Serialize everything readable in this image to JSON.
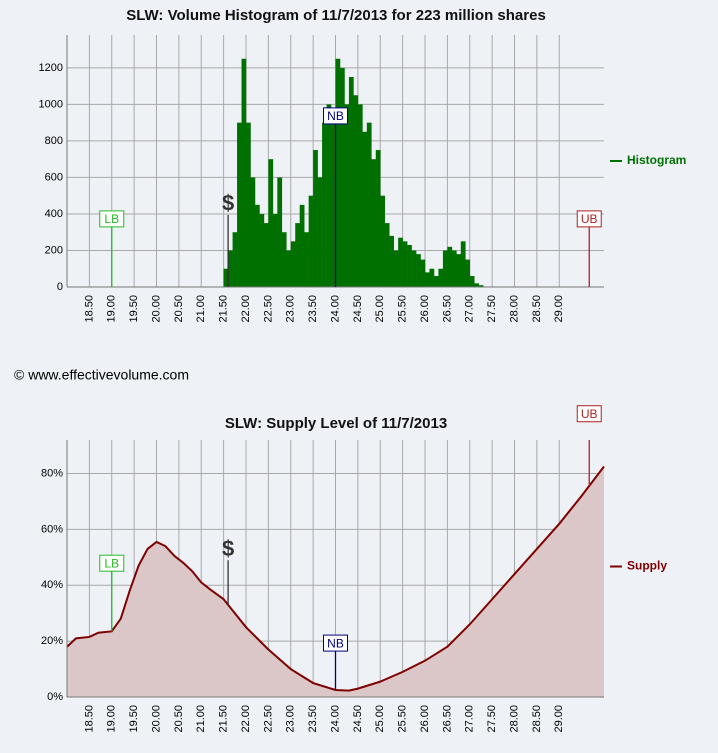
{
  "credit": "© www.effectivevolume.com",
  "chart_data": [
    {
      "type": "histogram",
      "title": "SLW: Volume Histogram of 11/7/2013 for 223 million shares",
      "xlim": [
        18.0,
        30.0
      ],
      "ylim": [
        0,
        1380
      ],
      "grid": true,
      "legend": "right",
      "xticks": [
        {
          "value": 18.5,
          "label": "18.50"
        },
        {
          "value": 19,
          "label": "19.00"
        },
        {
          "value": 19.5,
          "label": "19.50"
        },
        {
          "value": 20,
          "label": "20.00"
        },
        {
          "value": 20.5,
          "label": "20.50"
        },
        {
          "value": 21,
          "label": "21.00"
        },
        {
          "value": 21.5,
          "label": "21.50"
        },
        {
          "value": 22,
          "label": "22.00"
        },
        {
          "value": 22.5,
          "label": "22.50"
        },
        {
          "value": 23,
          "label": "23.00"
        },
        {
          "value": 23.5,
          "label": "23.50"
        },
        {
          "value": 24,
          "label": "24.00"
        },
        {
          "value": 24.5,
          "label": "24.50"
        },
        {
          "value": 25,
          "label": "25.00"
        },
        {
          "value": 25.5,
          "label": "25.50"
        },
        {
          "value": 26,
          "label": "26.00"
        },
        {
          "value": 26.5,
          "label": "26.50"
        },
        {
          "value": 27,
          "label": "27.00"
        },
        {
          "value": 27.5,
          "label": "27.50"
        },
        {
          "value": 28,
          "label": "28.00"
        },
        {
          "value": 28.5,
          "label": "28.50"
        },
        {
          "value": 29,
          "label": "29.00"
        }
      ],
      "yticks": [
        0,
        200,
        400,
        600,
        800,
        1000,
        1200
      ],
      "bins": [
        21.5,
        21.6,
        21.7,
        21.8,
        21.9,
        22.0,
        22.1,
        22.2,
        22.3,
        22.4,
        22.5,
        22.6,
        22.7,
        22.8,
        22.9,
        23.0,
        23.1,
        23.2,
        23.3,
        23.4,
        23.5,
        23.6,
        23.7,
        23.8,
        23.9,
        24.0,
        24.1,
        24.2,
        24.3,
        24.4,
        24.5,
        24.6,
        24.7,
        24.8,
        24.9,
        25.0,
        25.1,
        25.2,
        25.3,
        25.4,
        25.5,
        25.6,
        25.7,
        25.8,
        25.9,
        26.0,
        26.1,
        26.2,
        26.3,
        26.4,
        26.5,
        26.6,
        26.7,
        26.8,
        26.9,
        27.0,
        27.1,
        27.2,
        27.3
      ],
      "series": [
        {
          "name": "Histogram",
          "color": "#007000",
          "values": [
            100,
            200,
            300,
            900,
            1250,
            900,
            600,
            450,
            400,
            350,
            700,
            400,
            600,
            300,
            200,
            250,
            350,
            450,
            300,
            500,
            750,
            600,
            900,
            1000,
            900,
            1250,
            1200,
            1000,
            1150,
            1050,
            1000,
            850,
            900,
            700,
            750,
            500,
            350,
            280,
            200,
            270,
            250,
            230,
            200,
            180,
            150,
            80,
            100,
            60,
            100,
            200,
            220,
            200,
            180,
            250,
            150,
            60,
            20,
            10
          ]
        }
      ],
      "annotations": [
        {
          "label": "LB",
          "x": 19.0,
          "y": 373,
          "color": "#22bb22",
          "border": true
        },
        {
          "label": "$",
          "x": 21.6,
          "y": 455,
          "color": "#333333",
          "border": false
        },
        {
          "label": "NB",
          "x": 24.0,
          "y": 937,
          "color": "#000080",
          "border": true
        },
        {
          "label": "UB",
          "x": 29.67,
          "y": 373,
          "color": "#b02020",
          "border": true
        }
      ]
    },
    {
      "type": "area",
      "title": "SLW: Supply Level of 11/7/2013",
      "xlim": [
        18.0,
        30.0
      ],
      "ylim": [
        0,
        92
      ],
      "grid": true,
      "legend": "right",
      "xticks": [
        {
          "value": 18.5,
          "label": "18.50"
        },
        {
          "value": 19,
          "label": "19.00"
        },
        {
          "value": 19.5,
          "label": "19.50"
        },
        {
          "value": 20,
          "label": "20.00"
        },
        {
          "value": 20.5,
          "label": "20.50"
        },
        {
          "value": 21,
          "label": "21.00"
        },
        {
          "value": 21.5,
          "label": "21.50"
        },
        {
          "value": 22,
          "label": "22.00"
        },
        {
          "value": 22.5,
          "label": "22.50"
        },
        {
          "value": 23,
          "label": "23.00"
        },
        {
          "value": 23.5,
          "label": "23.50"
        },
        {
          "value": 24,
          "label": "24.00"
        },
        {
          "value": 24.5,
          "label": "24.50"
        },
        {
          "value": 25,
          "label": "25.00"
        },
        {
          "value": 25.5,
          "label": "25.50"
        },
        {
          "value": 26,
          "label": "26.00"
        },
        {
          "value": 26.5,
          "label": "26.50"
        },
        {
          "value": 27,
          "label": "27.00"
        },
        {
          "value": 27.5,
          "label": "27.50"
        },
        {
          "value": 28,
          "label": "28.00"
        },
        {
          "value": 28.5,
          "label": "28.50"
        },
        {
          "value": 29,
          "label": "29.00"
        }
      ],
      "yticks": [
        {
          "value": 0,
          "label": "0%"
        },
        {
          "value": 20,
          "label": "20%"
        },
        {
          "value": 40,
          "label": "40%"
        },
        {
          "value": 60,
          "label": "60%"
        },
        {
          "value": 80,
          "label": "80%"
        }
      ],
      "x": [
        18.0,
        18.2,
        18.5,
        18.7,
        19.0,
        19.2,
        19.4,
        19.6,
        19.8,
        20.0,
        20.2,
        20.4,
        20.6,
        20.8,
        21.0,
        21.2,
        21.5,
        21.8,
        22.0,
        22.5,
        23.0,
        23.5,
        24.0,
        24.3,
        24.5,
        25.0,
        25.5,
        26.0,
        26.5,
        27.0,
        27.5,
        28.0,
        28.5,
        29.0,
        29.5,
        30.0
      ],
      "series": [
        {
          "name": "Supply",
          "color": "#7f0000",
          "fill": "#dbc6c8",
          "values": [
            18,
            21,
            21.5,
            23,
            23.5,
            28,
            38,
            47,
            53,
            55.5,
            54,
            50.5,
            48,
            45,
            41,
            38.5,
            35,
            29,
            25,
            17,
            10,
            5,
            2.5,
            2.3,
            3,
            5.5,
            9,
            13,
            18,
            26,
            35,
            44,
            53,
            62,
            72,
            82.5
          ]
        }
      ],
      "annotations": [
        {
          "label": "LB",
          "x": 19.0,
          "y": 47.9,
          "color": "#22bb22",
          "border": true
        },
        {
          "label": "$",
          "x": 21.6,
          "y": 52.9,
          "color": "#333333",
          "border": false
        },
        {
          "label": "NB",
          "x": 24.0,
          "y": 19.3,
          "color": "#000080",
          "border": true
        },
        {
          "label": "UB",
          "x": 29.67,
          "y": 101.4,
          "color": "#b02020",
          "border": true
        }
      ]
    }
  ]
}
